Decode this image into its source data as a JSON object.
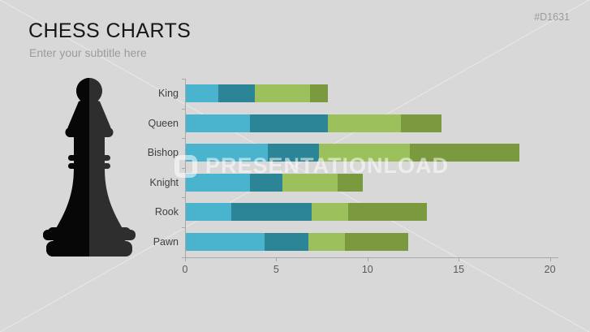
{
  "slide": {
    "title": "CHESS CHARTS",
    "subtitle": "Enter your subtitle here",
    "slide_id": "#D1631",
    "watermark": "PRESENTATIONLOAD",
    "background": "#d8d8d8"
  },
  "colors": {
    "series1": "#4ab3cd",
    "series2": "#2b8596",
    "series3": "#9cc05c",
    "series4": "#7b9a40",
    "axis": "#a8a8a8",
    "axis_text": "#595959",
    "category_text": "#3f3f3f"
  },
  "chart_data": {
    "type": "bar",
    "orientation": "horizontal",
    "stacked": true,
    "title": "",
    "xlabel": "",
    "ylabel": "",
    "categories": [
      "King",
      "Queen",
      "Bishop",
      "Knight",
      "Rook",
      "Pawn"
    ],
    "series": [
      {
        "color": "#4ab3cd",
        "values": [
          1.8,
          3.5,
          4.5,
          3.5,
          2.5,
          4.3
        ]
      },
      {
        "color": "#2b8596",
        "values": [
          2.0,
          4.3,
          2.8,
          1.8,
          4.4,
          2.4
        ]
      },
      {
        "color": "#9cc05c",
        "values": [
          3.0,
          4.0,
          5.0,
          3.0,
          2.0,
          2.0
        ]
      },
      {
        "color": "#7b9a40",
        "values": [
          1.0,
          2.2,
          6.0,
          1.4,
          4.3,
          3.5
        ]
      }
    ],
    "category_totals": [
      7.8,
      14.0,
      18.3,
      9.7,
      13.2,
      12.2
    ],
    "xlim": [
      0,
      20
    ],
    "x_ticks": [
      0,
      5,
      10,
      15,
      20
    ],
    "grid": false,
    "legend": false
  }
}
